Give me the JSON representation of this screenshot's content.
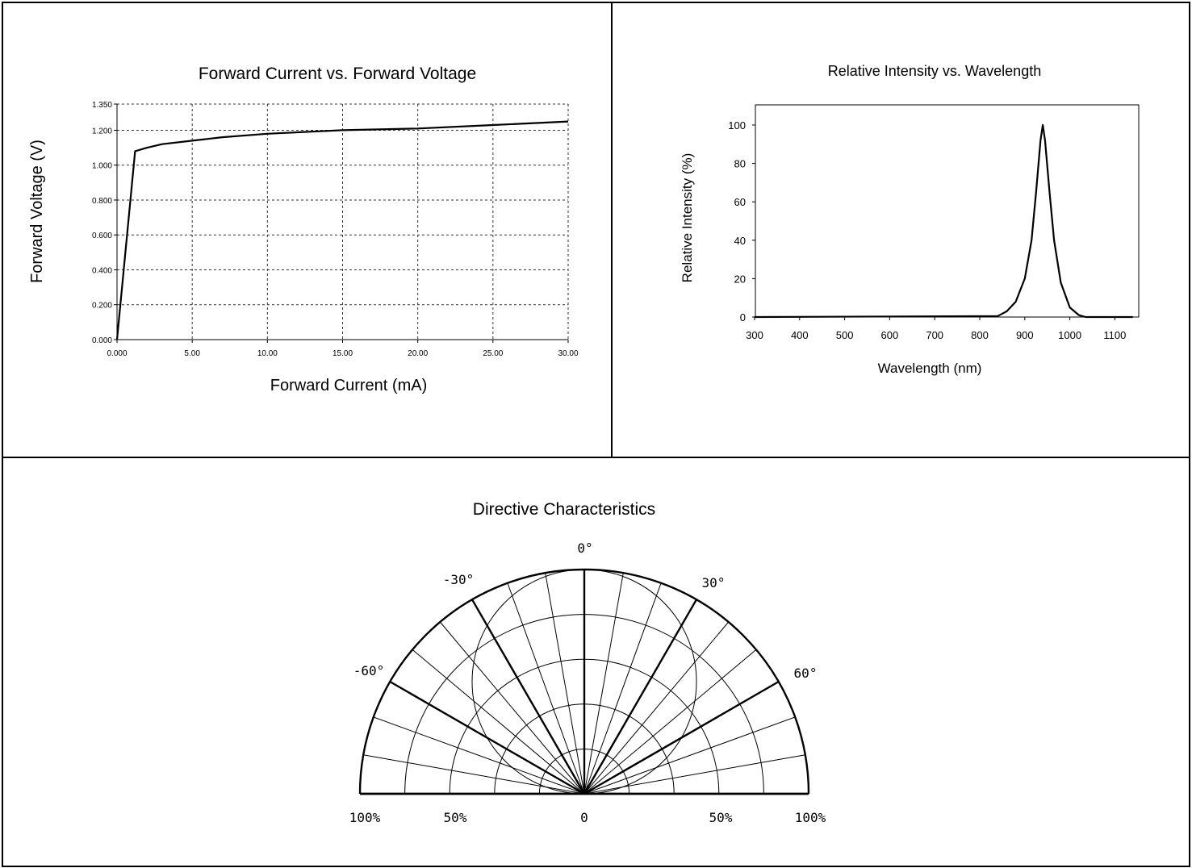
{
  "chart_data": [
    {
      "type": "line",
      "title": "Forward Current vs. Forward Voltage",
      "xlabel": "Forward Current (mA)",
      "ylabel": "Forward Voltage (V)",
      "xlim": [
        0,
        30
      ],
      "ylim": [
        0,
        1.35
      ],
      "xticks": [
        "0.000",
        "5.00",
        "10.00",
        "15.00",
        "20.00",
        "25.00",
        "30.00"
      ],
      "yticks": [
        "0.000",
        "0.200",
        "0.400",
        "0.600",
        "0.800",
        "1.000",
        "1.200",
        "1.350"
      ],
      "grid": true,
      "series": [
        {
          "x": [
            0,
            1.2,
            2,
            3,
            5,
            7,
            10,
            15,
            20,
            25,
            30
          ],
          "y": [
            0,
            1.08,
            1.1,
            1.12,
            1.14,
            1.16,
            1.18,
            1.2,
            1.21,
            1.23,
            1.25
          ]
        }
      ]
    },
    {
      "type": "line",
      "title": "Relative Intensity vs. Wavelength",
      "xlabel": "Wavelength (nm)",
      "ylabel": "Relative Intensity (%)",
      "xlim": [
        300,
        1150
      ],
      "ylim": [
        0,
        110
      ],
      "xticks": [
        "300",
        "400",
        "500",
        "600",
        "700",
        "800",
        "900",
        "1000",
        "1100"
      ],
      "yticks": [
        "0",
        "20",
        "40",
        "60",
        "80",
        "100"
      ],
      "grid": false,
      "series": [
        {
          "x": [
            300,
            840,
            860,
            880,
            900,
            915,
            925,
            935,
            940,
            945,
            955,
            965,
            980,
            1000,
            1020,
            1035,
            1140
          ],
          "y": [
            0,
            0.5,
            3,
            8,
            20,
            40,
            65,
            92,
            100,
            92,
            65,
            40,
            18,
            5,
            1,
            0,
            0
          ]
        }
      ]
    },
    {
      "type": "polar",
      "title": "Directive Characteristics",
      "angle_labels": [
        "0°",
        "-30°",
        "30°",
        "-60°",
        "60°"
      ],
      "radial_labels": [
        "100%",
        "50%",
        "0",
        "50%",
        "100%"
      ]
    }
  ]
}
